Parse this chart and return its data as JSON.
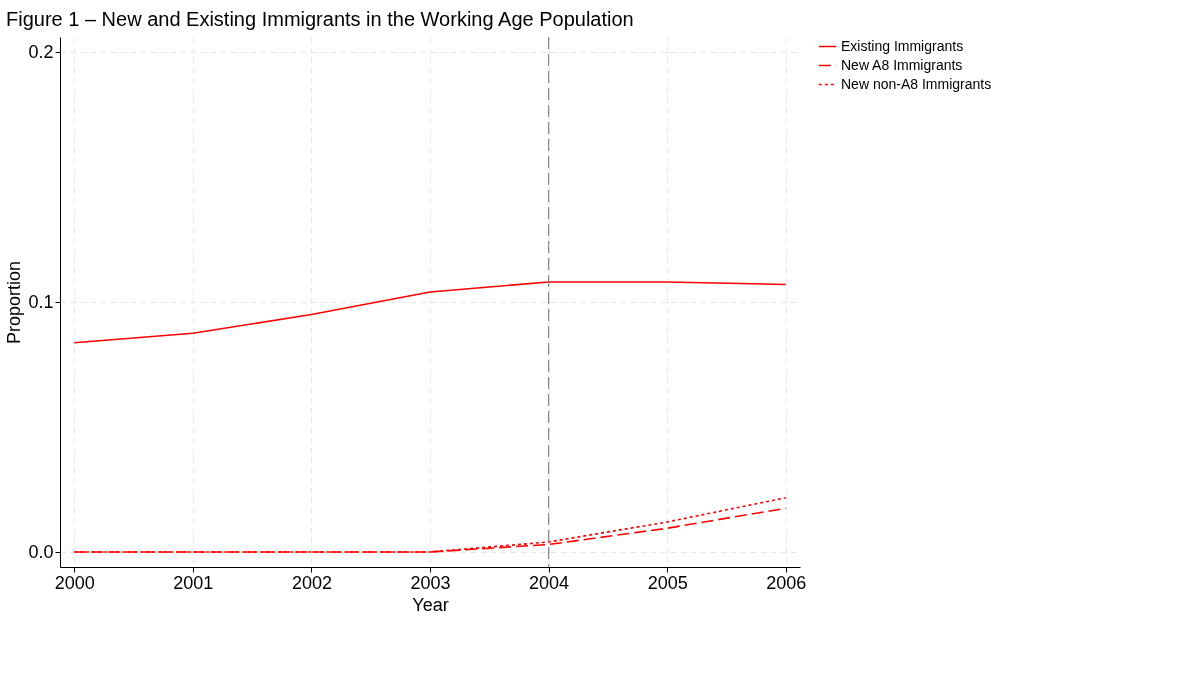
{
  "chart_data": {
    "type": "line",
    "title": "Figure 1 – New and Existing Immigrants in the Working Age Population",
    "xlabel": "Year",
    "ylabel": "Proportion",
    "x": [
      2000,
      2001,
      2002,
      2003,
      2004,
      2005,
      2006
    ],
    "series": [
      {
        "name": "Existing Immigrants",
        "color": "#ff0000",
        "line_style": "solid",
        "values": [
          0.0837,
          0.0875,
          0.095,
          0.104,
          0.108,
          0.108,
          0.107
        ]
      },
      {
        "name": "New A8 Immigrants",
        "color": "#ff0000",
        "line_style": "dashed",
        "values": [
          0,
          0,
          0,
          0,
          0.003,
          0.0095,
          0.0175
        ]
      },
      {
        "name": "New non-A8 Immigrants",
        "color": "#ff0000",
        "line_style": "dotted",
        "values": [
          0,
          0,
          0,
          0,
          0.004,
          0.012,
          0.0217
        ]
      }
    ],
    "xlim": [
      1999.88,
      2006.12
    ],
    "ylim": [
      -0.006,
      0.206
    ],
    "xticks": [
      2000,
      2001,
      2002,
      2003,
      2004,
      2005,
      2006
    ],
    "yticks": [
      {
        "value": 0,
        "label": "0.0"
      },
      {
        "value": 0.1,
        "label": "0.1"
      },
      {
        "value": 0.2,
        "label": "0.2"
      }
    ],
    "grid": true,
    "legend": "right",
    "marker": "none",
    "ref_lines": [
      {
        "axis": "x",
        "value": 2004,
        "label": null,
        "color": "#888888",
        "line_style": "dashed"
      }
    ]
  }
}
